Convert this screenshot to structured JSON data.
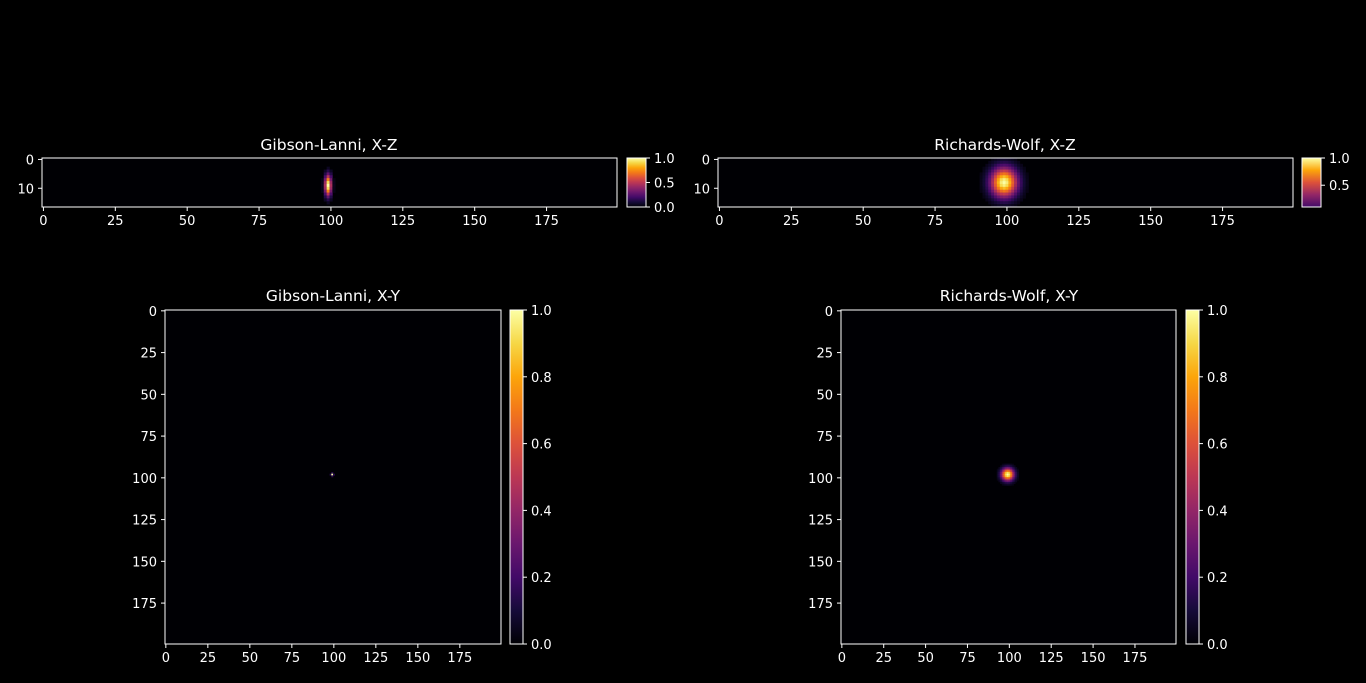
{
  "chart_data": [
    {
      "type": "heatmap",
      "title": "Gibson-Lanni, X-Z",
      "xlabel": "",
      "ylabel": "",
      "xlim": [
        0,
        199
      ],
      "ylim": [
        16,
        0
      ],
      "xticks": [
        0,
        25,
        50,
        75,
        100,
        125,
        150,
        175
      ],
      "yticks": [
        0,
        10
      ],
      "colormap": "inferno",
      "colorbar": {
        "range": [
          0,
          1
        ],
        "ticks": [
          "0.0",
          "0.5",
          "1.0"
        ]
      },
      "peak": {
        "x": 99,
        "y": 9,
        "value": 1.0,
        "sigma_x": 0.8,
        "sigma_y": 2.5
      }
    },
    {
      "type": "heatmap",
      "title": "Richards-Wolf, X-Z",
      "xlabel": "",
      "ylabel": "",
      "xlim": [
        0,
        199
      ],
      "ylim": [
        16,
        0
      ],
      "xticks": [
        0,
        25,
        50,
        75,
        100,
        125,
        150,
        175
      ],
      "yticks": [
        0,
        10
      ],
      "colormap": "inferno",
      "colorbar": {
        "range": [
          0.1,
          1
        ],
        "ticks": [
          "0.5",
          "1.0"
        ]
      },
      "peak": {
        "x": 99,
        "y": 8,
        "value": 1.0,
        "sigma_x": 3.2,
        "sigma_y": 3.5
      }
    },
    {
      "type": "heatmap",
      "title": "Gibson-Lanni, X-Y",
      "xlabel": "",
      "ylabel": "",
      "xlim": [
        0,
        199
      ],
      "ylim": [
        199,
        0
      ],
      "xticks": [
        0,
        25,
        50,
        75,
        100,
        125,
        150,
        175
      ],
      "yticks": [
        0,
        25,
        50,
        75,
        100,
        125,
        150,
        175
      ],
      "colormap": "inferno",
      "colorbar": {
        "range": [
          0,
          1
        ],
        "ticks": [
          "0.0",
          "0.2",
          "0.4",
          "0.6",
          "0.8",
          "1.0"
        ]
      },
      "peak": {
        "x": 99,
        "y": 98,
        "value": 1.0,
        "sigma_x": 0.5,
        "sigma_y": 0.5
      }
    },
    {
      "type": "heatmap",
      "title": "Richards-Wolf, X-Y",
      "xlabel": "",
      "ylabel": "",
      "xlim": [
        0,
        199
      ],
      "ylim": [
        199,
        0
      ],
      "xticks": [
        0,
        25,
        50,
        75,
        100,
        125,
        150,
        175
      ],
      "yticks": [
        0,
        25,
        50,
        75,
        100,
        125,
        150,
        175
      ],
      "colormap": "inferno",
      "colorbar": {
        "range": [
          0,
          1
        ],
        "ticks": [
          "0.0",
          "0.2",
          "0.4",
          "0.6",
          "0.8",
          "1.0"
        ]
      },
      "peak": {
        "x": 99,
        "y": 98,
        "value": 1.0,
        "sigma_x": 2.6,
        "sigma_y": 2.6
      }
    }
  ]
}
